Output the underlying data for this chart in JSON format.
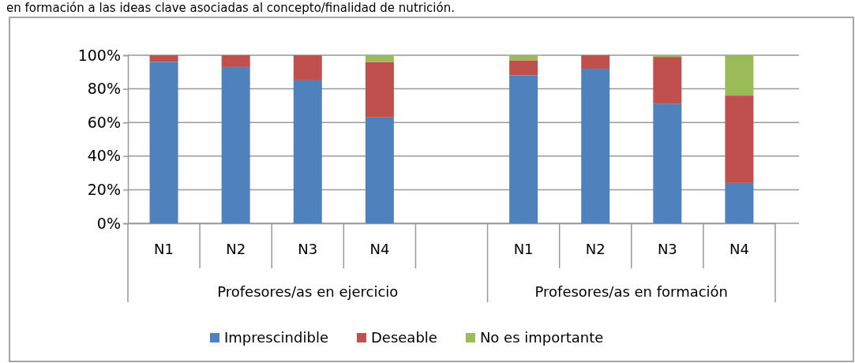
{
  "chart_data": {
    "type": "bar",
    "stacked": true,
    "title": "en formación a las ideas clave asociadas al concepto/finalidad de nutrición.",
    "categories": [
      "N1",
      "N2",
      "N3",
      "N4",
      null,
      "N1",
      "N2",
      "N3",
      "N4"
    ],
    "series": [
      {
        "name": "Imprescindible",
        "color": "#4f81bd",
        "values": [
          96,
          93,
          85,
          63,
          null,
          88,
          92,
          71,
          24
        ]
      },
      {
        "name": "Deseable",
        "color": "#c0504d",
        "values": [
          4,
          7,
          15,
          33,
          null,
          9,
          8,
          28,
          52
        ]
      },
      {
        "name": "No es importante",
        "color": "#9bbb59",
        "values": [
          0,
          0,
          0,
          4,
          null,
          3,
          0,
          1,
          24
        ]
      }
    ],
    "annotations": [
      "Profesores/as en ejercicio",
      "Profesores/as en formación"
    ],
    "ylim": [
      0,
      100
    ],
    "yticks": [
      {
        "value": 0,
        "label": "0%"
      },
      {
        "value": 20,
        "label": "20%"
      },
      {
        "value": 40,
        "label": "40%"
      },
      {
        "value": 60,
        "label": "60%"
      },
      {
        "value": 80,
        "label": "80%"
      },
      {
        "value": 100,
        "label": "100%"
      }
    ],
    "grid": "y",
    "legend": "bottom"
  }
}
